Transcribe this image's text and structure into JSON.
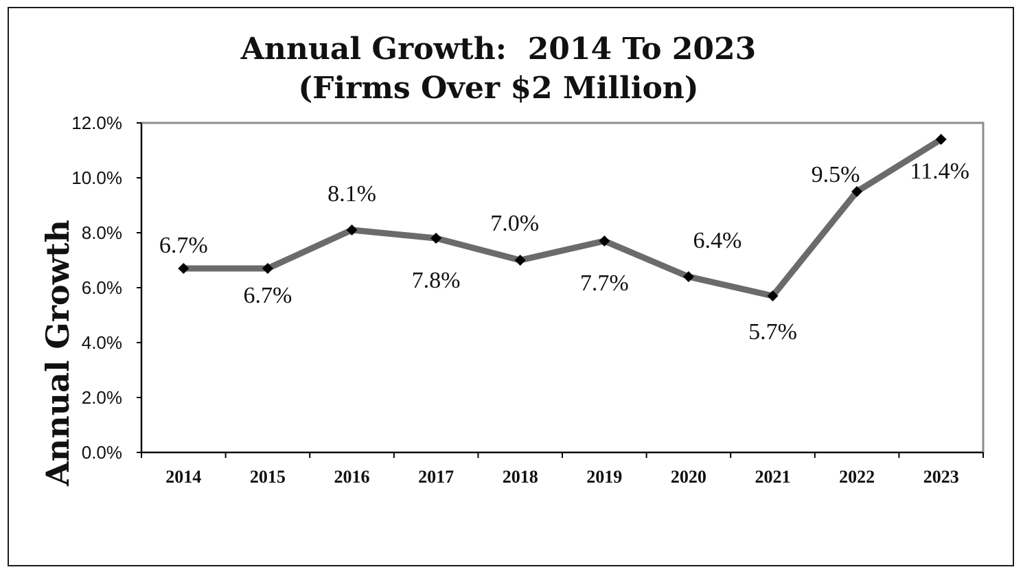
{
  "chart_data": {
    "type": "line",
    "title": "Annual Growth:  2014 To 2023",
    "subtitle": "(Firms Over $2 Million)",
    "ylabel": "Annual Growth",
    "xlabel": "",
    "categories": [
      "2014",
      "2015",
      "2016",
      "2017",
      "2018",
      "2019",
      "2020",
      "2021",
      "2022",
      "2023"
    ],
    "values": [
      6.7,
      6.7,
      8.1,
      7.8,
      7.0,
      7.7,
      6.4,
      5.7,
      9.5,
      11.4
    ],
    "data_labels": [
      "6.7%",
      "6.7%",
      "8.1%",
      "7.8%",
      "7.0%",
      "7.7%",
      "6.4%",
      "5.7%",
      "9.5%",
      "11.4%"
    ],
    "ylim": [
      0,
      12
    ],
    "yticks": [
      "0.0%",
      "2.0%",
      "4.0%",
      "6.0%",
      "8.0%",
      "10.0%",
      "12.0%"
    ],
    "grid": false,
    "colors": {
      "line": "#6b6b6b",
      "marker": "#000000",
      "frame": "#8c8c8c"
    }
  }
}
